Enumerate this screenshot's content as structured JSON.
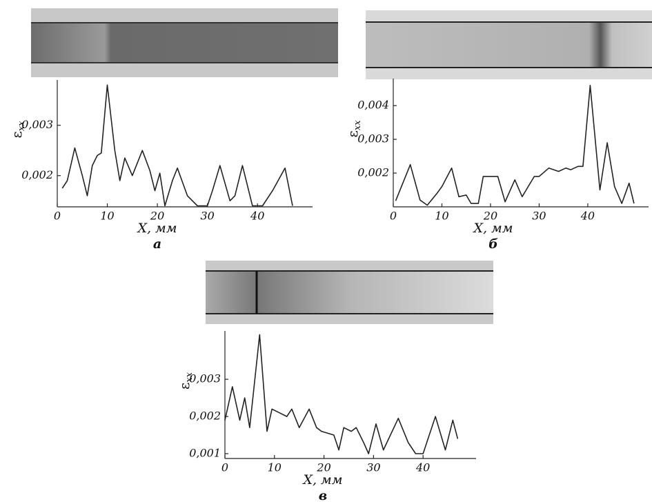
{
  "chart_data": [
    {
      "type": "line",
      "panel_label": "а",
      "x_label": "X, мм",
      "y_label": "ε",
      "y_label_sub": "xx",
      "xlim": [
        0,
        51
      ],
      "xticks": [
        0,
        10,
        20,
        30,
        40
      ],
      "ylim": [
        0.00138,
        0.0039
      ],
      "yticks": [
        {
          "value": 0.002,
          "label": "0,002"
        },
        {
          "value": 0.003,
          "label": "0,003"
        }
      ],
      "x": [
        1,
        2,
        3.5,
        5,
        6,
        7,
        8,
        8.8,
        10,
        11.5,
        12.5,
        13.5,
        15,
        17,
        18.5,
        19.5,
        20.5,
        21.5,
        23,
        24,
        26,
        28,
        30,
        31,
        32.5,
        34.5,
        35.5,
        37,
        39,
        41,
        43,
        45.5,
        47
      ],
      "series": [
        {
          "color": "#222222",
          "values": [
            0.00175,
            0.0019,
            0.00255,
            0.002,
            0.0016,
            0.0022,
            0.0024,
            0.00245,
            0.0038,
            0.0025,
            0.0019,
            0.00235,
            0.002,
            0.0025,
            0.0021,
            0.0017,
            0.00205,
            0.0014,
            0.0019,
            0.00215,
            0.0016,
            0.0014,
            0.0014,
            0.0017,
            0.0022,
            0.0015,
            0.0016,
            0.0022,
            0.0014,
            0.0014,
            0.0017,
            0.00215,
            0.0014
          ]
        }
      ]
    },
    {
      "type": "line",
      "panel_label": "б",
      "x_label": "X, мм",
      "y_label": "ε",
      "y_label_sub": "xx",
      "xlim": [
        0,
        52.5
      ],
      "xticks": [
        0,
        10,
        20,
        30,
        40
      ],
      "ylim": [
        0.001,
        0.0048
      ],
      "yticks": [
        {
          "value": 0.002,
          "label": "0,002"
        },
        {
          "value": 0.003,
          "label": "0,003"
        },
        {
          "value": 0.004,
          "label": "0,004"
        }
      ],
      "x": [
        0.5,
        3.5,
        5.5,
        7,
        9,
        10,
        12,
        13.5,
        15,
        16,
        17.5,
        18.5,
        20,
        21.5,
        23,
        25,
        26.5,
        29,
        30,
        32,
        34,
        35.5,
        36.5,
        38,
        39,
        40.5,
        42.5,
        44,
        45.5,
        47,
        48.5,
        49.5
      ],
      "series": [
        {
          "color": "#222222",
          "values": [
            0.00118,
            0.00225,
            0.0012,
            0.00105,
            0.0014,
            0.0016,
            0.00215,
            0.0013,
            0.00135,
            0.0011,
            0.0011,
            0.0019,
            0.0019,
            0.0019,
            0.00115,
            0.0018,
            0.0013,
            0.0019,
            0.0019,
            0.00215,
            0.00205,
            0.00215,
            0.0021,
            0.0022,
            0.0022,
            0.0046,
            0.0015,
            0.0029,
            0.0016,
            0.0011,
            0.0017,
            0.0011
          ]
        }
      ]
    },
    {
      "type": "line",
      "panel_label": "в",
      "x_label": "X, мм",
      "y_label": "ε",
      "y_label_sub": "xx",
      "xlim": [
        0,
        50.7
      ],
      "xticks": [
        0,
        10,
        20,
        30,
        40
      ],
      "ylim": [
        0.00087,
        0.0043
      ],
      "yticks": [
        {
          "value": 0.001,
          "label": "0,001"
        },
        {
          "value": 0.002,
          "label": "0,002"
        },
        {
          "value": 0.003,
          "label": "0,003"
        }
      ],
      "x": [
        0,
        1.5,
        3,
        4,
        5,
        7,
        8.5,
        9.5,
        11,
        12.5,
        13.5,
        15,
        17,
        18.5,
        19.5,
        22,
        23,
        24,
        25.5,
        26.5,
        28,
        29,
        30.5,
        32,
        35,
        37,
        38.5,
        40,
        42.5,
        44.5,
        46,
        47
      ],
      "series": [
        {
          "color": "#222222",
          "values": [
            0.0019,
            0.0028,
            0.0019,
            0.0025,
            0.0017,
            0.0042,
            0.0016,
            0.0022,
            0.0021,
            0.002,
            0.0022,
            0.0017,
            0.0022,
            0.0017,
            0.0016,
            0.0015,
            0.0011,
            0.0017,
            0.0016,
            0.0017,
            0.0013,
            0.001,
            0.0018,
            0.0011,
            0.00195,
            0.0013,
            0.001,
            0.001,
            0.002,
            0.0011,
            0.0019,
            0.0014
          ]
        }
      ]
    }
  ]
}
